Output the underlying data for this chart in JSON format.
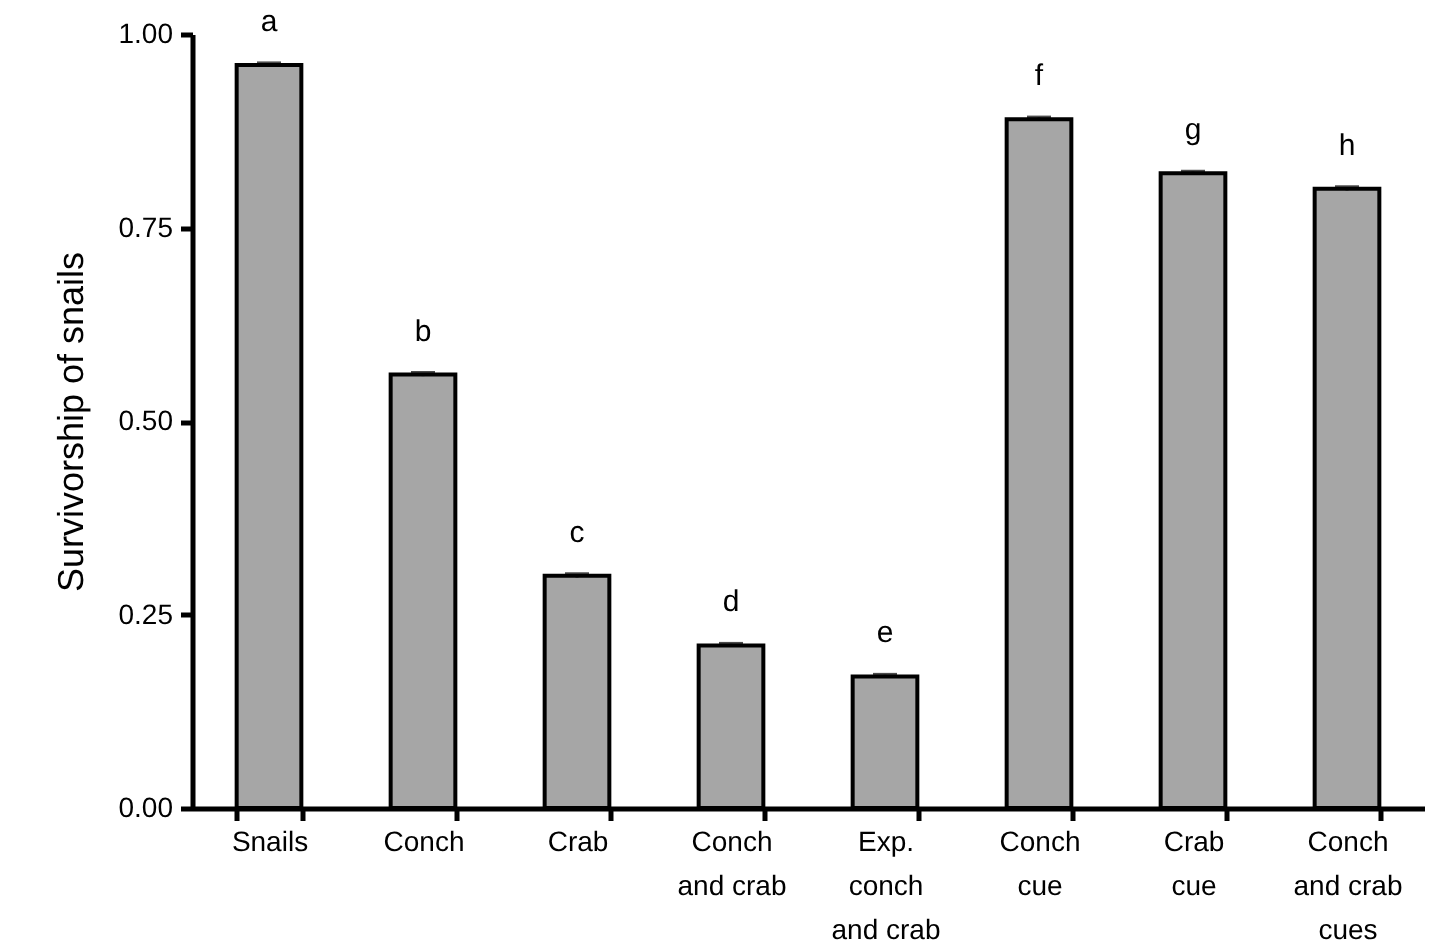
{
  "chart_data": {
    "type": "bar",
    "ylabel": "Survivorship of snails",
    "categories": [
      "Snails",
      "Conch",
      "Crab",
      "Conch and crab",
      "Exp. conch and crab",
      "Conch cue",
      "Crab cue",
      "Conch and crab cues"
    ],
    "values": [
      0.96,
      0.56,
      0.3,
      0.21,
      0.17,
      0.89,
      0.82,
      0.8
    ],
    "errors": [
      0.002,
      0.002,
      0.002,
      0.002,
      0.002,
      0.002,
      0.002,
      0.002
    ],
    "color": "#a6a6a6",
    "ylim": [
      0,
      1
    ],
    "yticks": [
      {
        "value": 0,
        "label": "0.00"
      },
      {
        "value": 0.25,
        "label": "0.25"
      },
      {
        "value": 0.5,
        "label": "0.50"
      },
      {
        "value": 0.75,
        "label": "0.75"
      },
      {
        "value": 1,
        "label": "1.00"
      }
    ],
    "grid": false,
    "annotations": [
      {
        "text": "a",
        "x": "Snails",
        "y": 0.96
      },
      {
        "text": "b",
        "x": "Conch",
        "y": 0.56
      },
      {
        "text": "c",
        "x": "Crab",
        "y": 0.3
      },
      {
        "text": "d",
        "x": "Conch and crab",
        "y": 0.21
      },
      {
        "text": "e",
        "x": "Exp. conch and crab",
        "y": 0.17
      },
      {
        "text": "f",
        "x": "Conch cue",
        "y": 0.89
      },
      {
        "text": "g",
        "x": "Crab cue",
        "y": 0.82
      },
      {
        "text": "h",
        "x": "Conch and crab cues",
        "y": 0.8
      }
    ]
  }
}
